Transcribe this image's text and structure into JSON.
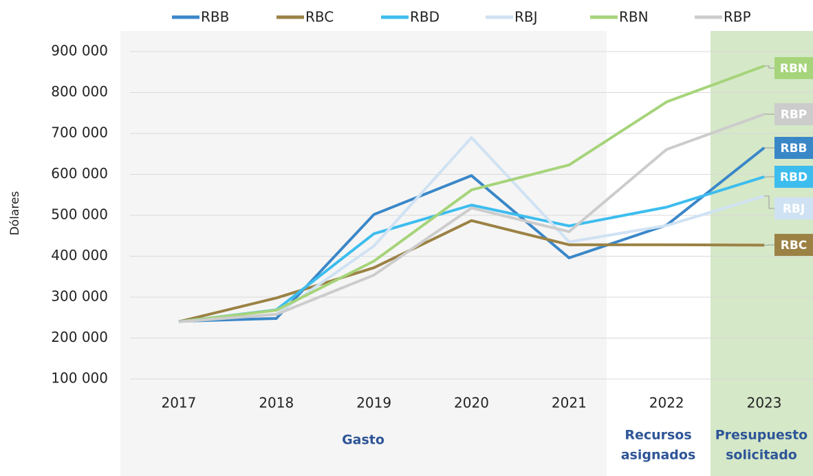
{
  "chart_data": {
    "type": "line",
    "y_label": "Dólares",
    "categories": [
      "2017",
      "2018",
      "2019",
      "2020",
      "2021",
      "2022",
      "2023"
    ],
    "series": [
      {
        "name": "RBB",
        "color": "#3a87c8",
        "values": [
          241000,
          248000,
          502000,
          597000,
          396000,
          476000,
          665000
        ]
      },
      {
        "name": "RBC",
        "color": "#9b8244",
        "values": [
          240000,
          298000,
          372000,
          487000,
          428000,
          428000,
          427000
        ]
      },
      {
        "name": "RBD",
        "color": "#3dbdee",
        "values": [
          240000,
          269000,
          455000,
          525000,
          474000,
          520000,
          594000
        ]
      },
      {
        "name": "RBJ",
        "color": "#cfe2f3",
        "values": [
          240000,
          258000,
          425000,
          690000,
          435000,
          475000,
          547000
        ]
      },
      {
        "name": "RBN",
        "color": "#a6d47a",
        "values": [
          240000,
          268000,
          388000,
          562000,
          623000,
          777000,
          865000
        ]
      },
      {
        "name": "RBP",
        "color": "#cccccc",
        "values": [
          240000,
          258000,
          354000,
          518000,
          460000,
          661000,
          747000
        ]
      }
    ],
    "regions": [
      {
        "label": [
          "Gasto"
        ]
      },
      {
        "label": [
          "Recursos",
          "asignados"
        ]
      },
      {
        "label": [
          "Presupuesto",
          "solicitado"
        ]
      }
    ],
    "ylim": [
      100000,
      900000
    ],
    "yticks": [
      {
        "value": 100000,
        "label": "100 000"
      },
      {
        "value": 200000,
        "label": "200 000"
      },
      {
        "value": 300000,
        "label": "300 000"
      },
      {
        "value": 400000,
        "label": "400 000"
      },
      {
        "value": 500000,
        "label": "500 000"
      },
      {
        "value": 600000,
        "label": "600 000"
      },
      {
        "value": 700000,
        "label": "700 000"
      },
      {
        "value": 800000,
        "label": "800 000"
      },
      {
        "value": 900000,
        "label": "900 000"
      }
    ],
    "grid": true,
    "legend": "top"
  }
}
